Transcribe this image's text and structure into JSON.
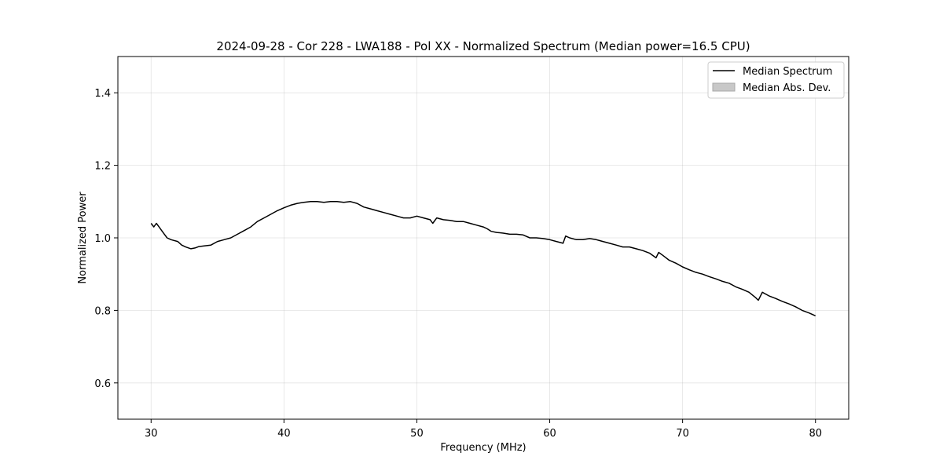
{
  "chart_data": {
    "type": "line",
    "title": "2024-09-28 - Cor 228 - LWA188 - Pol XX - Normalized Spectrum (Median power=16.5 CPU)",
    "xlabel": "Frequency (MHz)",
    "ylabel": "Normalized Power",
    "xlim": [
      27.5,
      82.5
    ],
    "ylim": [
      0.5,
      1.5
    ],
    "xticks": [
      30,
      40,
      50,
      60,
      70,
      80
    ],
    "xtick_labels": [
      "30",
      "40",
      "50",
      "60",
      "70",
      "80"
    ],
    "yticks": [
      0.6,
      0.8,
      1.0,
      1.2,
      1.4
    ],
    "ytick_labels": [
      "0.6",
      "0.8",
      "1.0",
      "1.2",
      "1.4"
    ],
    "grid": true,
    "legend_position": "top-right",
    "legend": [
      {
        "label": "Median Spectrum",
        "kind": "line",
        "color": "#000000"
      },
      {
        "label": "Median Abs. Dev.",
        "kind": "patch",
        "color": "#c8c8c8"
      }
    ],
    "series": [
      {
        "name": "Median Spectrum",
        "color": "#000000",
        "x": [
          30.0,
          30.2,
          30.4,
          30.6,
          30.8,
          31.0,
          31.2,
          31.5,
          32.0,
          32.3,
          32.6,
          33.0,
          33.3,
          33.6,
          34.0,
          34.5,
          35.0,
          35.5,
          36.0,
          36.5,
          37.0,
          37.5,
          38.0,
          38.5,
          39.0,
          39.5,
          40.0,
          40.5,
          41.0,
          41.5,
          42.0,
          42.5,
          43.0,
          43.5,
          44.0,
          44.5,
          45.0,
          45.5,
          46.0,
          46.5,
          47.0,
          47.5,
          48.0,
          48.5,
          49.0,
          49.5,
          50.0,
          50.5,
          51.0,
          51.2,
          51.5,
          52.0,
          52.5,
          53.0,
          53.5,
          54.0,
          54.5,
          55.0,
          55.3,
          55.6,
          56.0,
          56.5,
          57.0,
          57.5,
          58.0,
          58.5,
          59.0,
          59.5,
          60.0,
          60.5,
          61.0,
          61.2,
          61.5,
          62.0,
          62.5,
          63.0,
          63.5,
          64.0,
          64.5,
          65.0,
          65.5,
          66.0,
          66.5,
          67.0,
          67.5,
          68.0,
          68.2,
          68.5,
          69.0,
          69.5,
          70.0,
          70.5,
          71.0,
          71.5,
          72.0,
          72.5,
          73.0,
          73.5,
          74.0,
          74.5,
          75.0,
          75.5,
          75.7,
          76.0,
          76.5,
          77.0,
          77.5,
          78.0,
          78.5,
          79.0,
          79.5,
          80.0
        ],
        "values": [
          1.04,
          1.03,
          1.04,
          1.03,
          1.02,
          1.01,
          1.0,
          0.995,
          0.99,
          0.98,
          0.975,
          0.97,
          0.972,
          0.976,
          0.978,
          0.98,
          0.99,
          0.995,
          1.0,
          1.01,
          1.02,
          1.03,
          1.045,
          1.055,
          1.065,
          1.075,
          1.083,
          1.09,
          1.095,
          1.098,
          1.1,
          1.1,
          1.098,
          1.1,
          1.1,
          1.098,
          1.1,
          1.095,
          1.085,
          1.08,
          1.075,
          1.07,
          1.065,
          1.06,
          1.055,
          1.055,
          1.06,
          1.055,
          1.05,
          1.04,
          1.055,
          1.05,
          1.048,
          1.045,
          1.045,
          1.04,
          1.035,
          1.03,
          1.025,
          1.018,
          1.015,
          1.013,
          1.01,
          1.01,
          1.008,
          1.0,
          1.0,
          0.998,
          0.995,
          0.99,
          0.985,
          1.005,
          1.0,
          0.995,
          0.995,
          0.998,
          0.995,
          0.99,
          0.985,
          0.98,
          0.975,
          0.975,
          0.97,
          0.965,
          0.958,
          0.945,
          0.96,
          0.952,
          0.938,
          0.93,
          0.92,
          0.912,
          0.905,
          0.9,
          0.893,
          0.887,
          0.88,
          0.875,
          0.865,
          0.858,
          0.85,
          0.835,
          0.828,
          0.85,
          0.84,
          0.833,
          0.825,
          0.818,
          0.81,
          0.8,
          0.793,
          0.785
        ]
      },
      {
        "name": "Median Abs. Dev.",
        "color": "#c8c8c8",
        "values": []
      }
    ]
  }
}
